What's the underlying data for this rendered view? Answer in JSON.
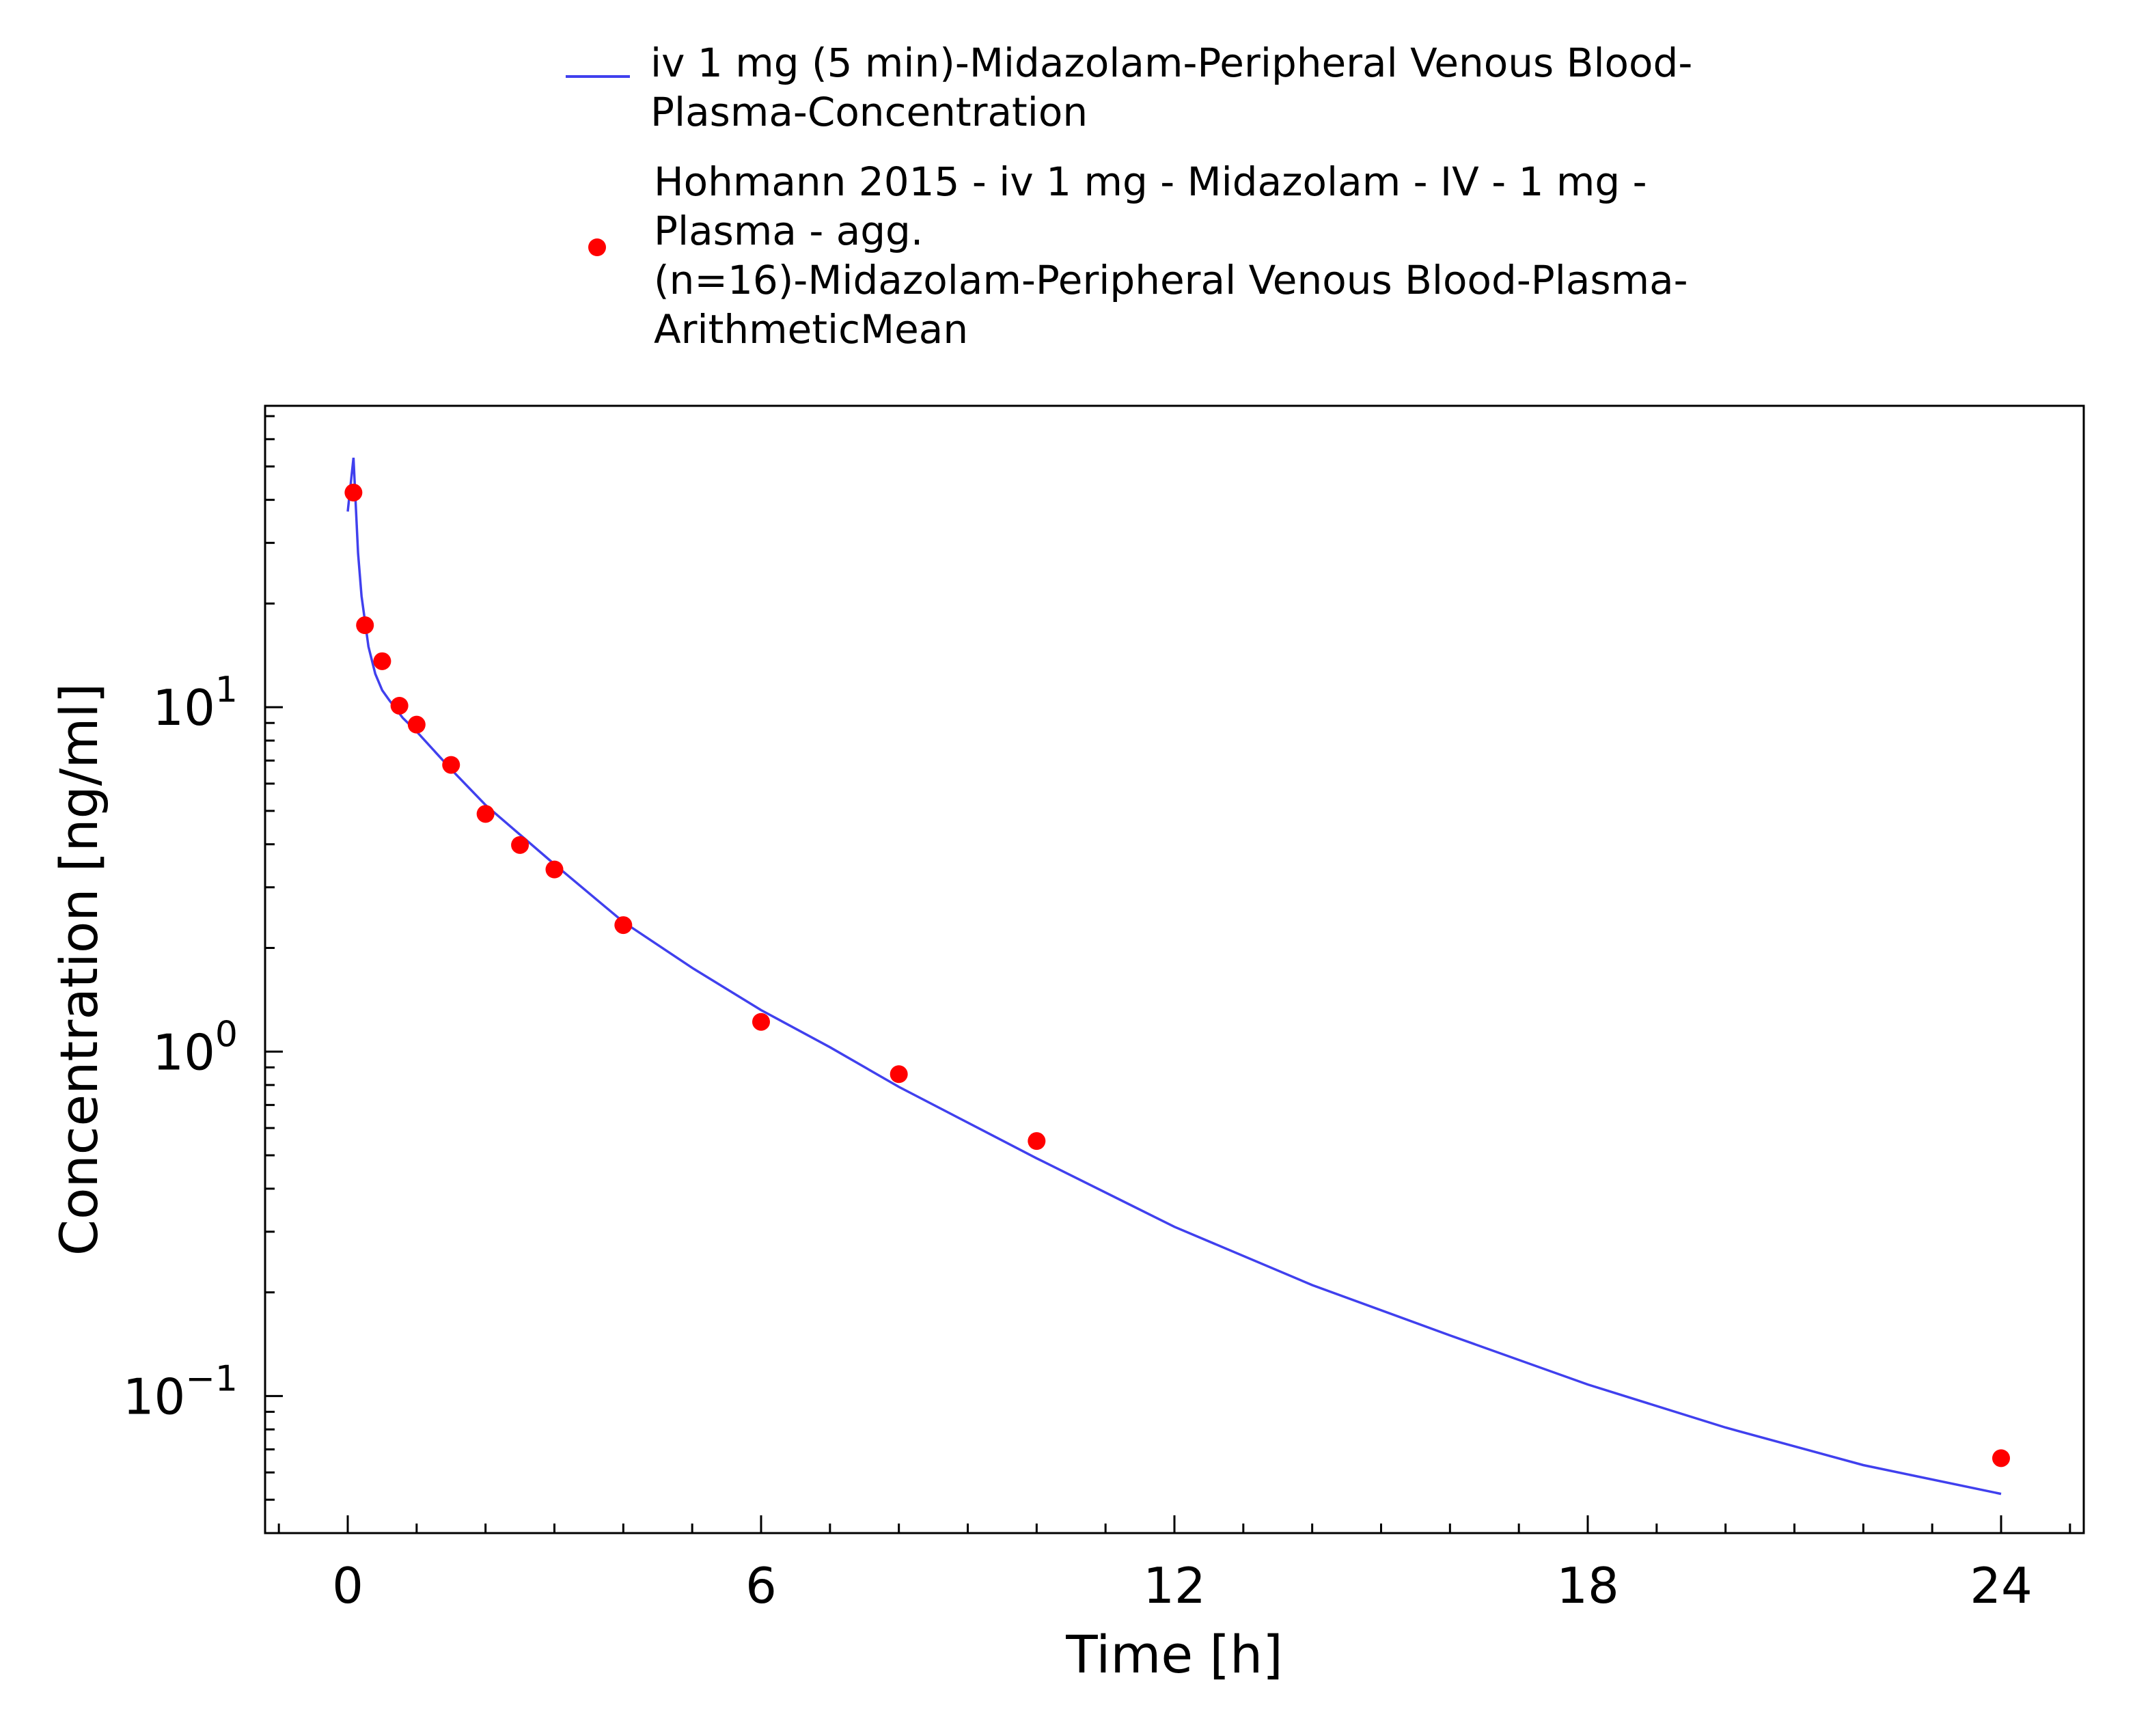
{
  "chart_data": {
    "type": "line",
    "xlabel": "Time [h]",
    "ylabel": "Concentration [ng/ml]",
    "xlim": [
      -1.2,
      25.2
    ],
    "ylim": [
      0.04,
      75
    ],
    "yscale": "log",
    "x_ticks": [
      0,
      6,
      12,
      18,
      24
    ],
    "x_tick_labels": [
      "0",
      "6",
      "12",
      "18",
      "24"
    ],
    "y_ticks": [
      0.1,
      1,
      10
    ],
    "y_tick_labels": [
      {
        "base": "10",
        "exp": "−1"
      },
      {
        "base": "10",
        "exp": "0"
      },
      {
        "base": "10",
        "exp": "1"
      }
    ],
    "grid": false,
    "legend_position": "top",
    "series": [
      {
        "name_lines": [
          "iv 1 mg (5 min)-Midazolam-Peripheral Venous Blood-",
          "Plasma-Concentration"
        ],
        "type": "line",
        "color": "#4040ee",
        "x": [
          0.0,
          0.083,
          0.15,
          0.2,
          0.3,
          0.4,
          0.5,
          0.6,
          0.8,
          1.0,
          1.5,
          2.0,
          3.0,
          4.0,
          5.0,
          6.0,
          7.0,
          8.0,
          10.0,
          12.0,
          14.0,
          16.0,
          18.0,
          20.0,
          22.0,
          24.0
        ],
        "y": [
          37,
          53,
          28,
          21,
          15,
          12.5,
          11.2,
          10.5,
          9.3,
          8.5,
          6.6,
          5.2,
          3.5,
          2.38,
          1.75,
          1.32,
          1.03,
          0.79,
          0.49,
          0.31,
          0.21,
          0.15,
          0.108,
          0.081,
          0.063,
          0.052
        ]
      },
      {
        "name_lines": [
          "Hohmann 2015 - iv 1 mg - Midazolam - IV - 1 mg -",
          "Plasma - agg.",
          "(n=16)-Midazolam-Peripheral Venous Blood-Plasma-",
          "ArithmeticMean"
        ],
        "type": "scatter",
        "color": "#ff0000",
        "x": [
          0.083,
          0.25,
          0.5,
          0.75,
          1.0,
          1.5,
          2.0,
          2.5,
          3.0,
          4.0,
          6.0,
          8.0,
          10.0,
          24.0
        ],
        "y": [
          42,
          17.3,
          13.6,
          10.1,
          8.9,
          6.8,
          4.9,
          3.98,
          3.38,
          2.33,
          1.22,
          0.86,
          0.55,
          0.066
        ]
      }
    ]
  }
}
